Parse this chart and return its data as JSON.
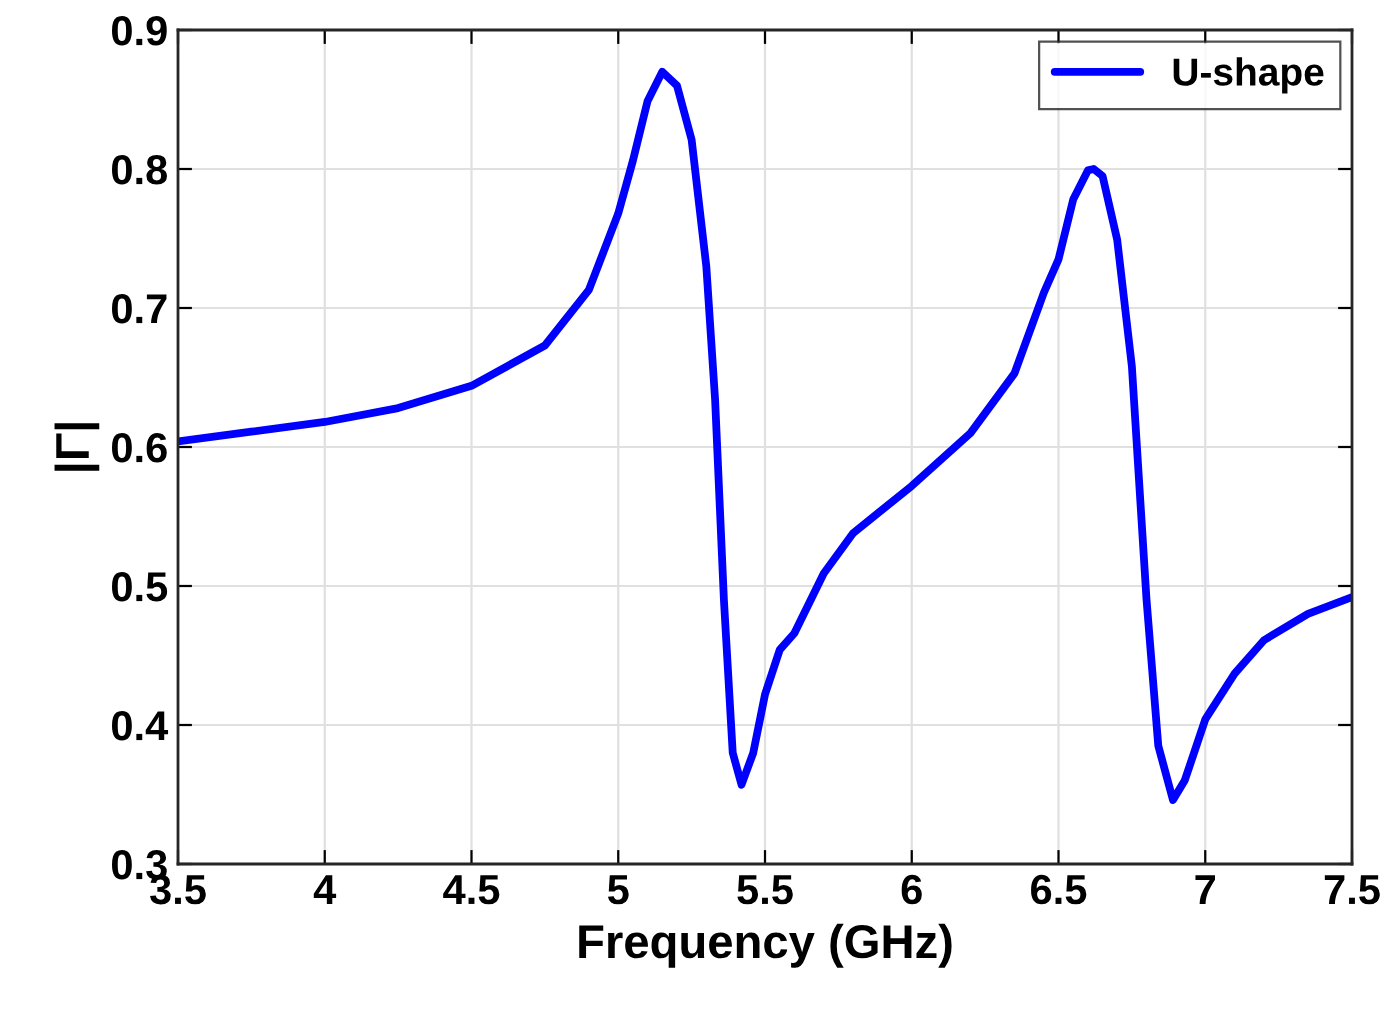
{
  "chart_data": {
    "type": "line",
    "xlabel": "Frequency (GHz)",
    "ylabel": "|Γ|",
    "xlim": [
      3.5,
      7.5
    ],
    "ylim": [
      0.3,
      0.9
    ],
    "xticks": [
      3.5,
      4,
      4.5,
      5,
      5.5,
      6,
      6.5,
      7,
      7.5
    ],
    "yticks": [
      0.3,
      0.4,
      0.5,
      0.6,
      0.7,
      0.8,
      0.9
    ],
    "grid": true,
    "legend": "top right",
    "marker": "none",
    "line_style": "solid",
    "series": [
      {
        "name": "U-shape",
        "color": "#0000ff",
        "x": [
          3.5,
          3.75,
          4.0,
          4.25,
          4.5,
          4.75,
          4.9,
          5.0,
          5.05,
          5.1,
          5.15,
          5.2,
          5.25,
          5.3,
          5.33,
          5.36,
          5.39,
          5.42,
          5.46,
          5.5,
          5.55,
          5.6,
          5.7,
          5.8,
          6.0,
          6.2,
          6.35,
          6.45,
          6.5,
          6.55,
          6.6,
          6.62,
          6.65,
          6.7,
          6.75,
          6.8,
          6.84,
          6.89,
          6.93,
          7.0,
          7.1,
          7.2,
          7.35,
          7.5
        ],
        "values": [
          0.604,
          0.611,
          0.618,
          0.628,
          0.644,
          0.673,
          0.713,
          0.768,
          0.806,
          0.849,
          0.87,
          0.86,
          0.821,
          0.73,
          0.634,
          0.49,
          0.38,
          0.357,
          0.38,
          0.422,
          0.454,
          0.466,
          0.509,
          0.538,
          0.572,
          0.61,
          0.653,
          0.711,
          0.735,
          0.778,
          0.799,
          0.8,
          0.795,
          0.749,
          0.658,
          0.49,
          0.385,
          0.346,
          0.36,
          0.404,
          0.437,
          0.461,
          0.48,
          0.492
        ]
      }
    ]
  }
}
